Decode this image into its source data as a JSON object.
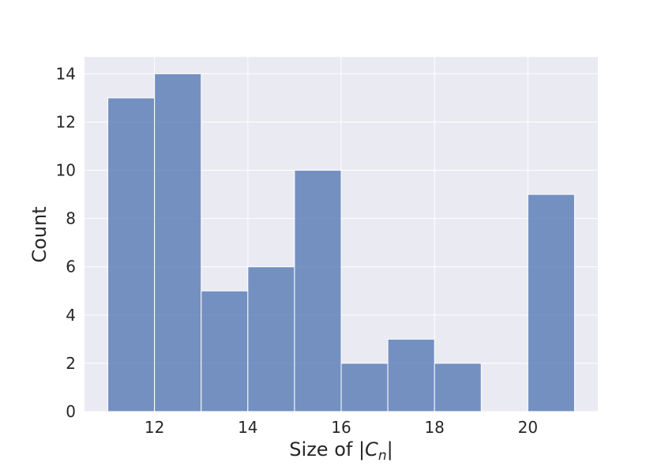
{
  "chart_data": {
    "type": "bar",
    "title": "",
    "xlabel_prefix": "Size of ",
    "xlabel_sub": "n",
    "ylabel": "Count",
    "bin_edges": [
      11,
      12,
      13,
      14,
      15,
      16,
      17,
      18,
      19,
      20,
      21
    ],
    "values": [
      13,
      14,
      5,
      6,
      10,
      2,
      3,
      2,
      0,
      9
    ],
    "xlim": [
      10.5,
      21.5
    ],
    "ylim": [
      0,
      14.7
    ],
    "x_ticks": [
      12,
      14,
      16,
      18,
      20
    ],
    "y_ticks": [
      0,
      2,
      4,
      6,
      8,
      10,
      12,
      14
    ],
    "grid": true,
    "colors": {
      "bar_fill": "#4c72b0",
      "plot_background": "#eaeaf2",
      "grid": "#ffffff"
    }
  }
}
